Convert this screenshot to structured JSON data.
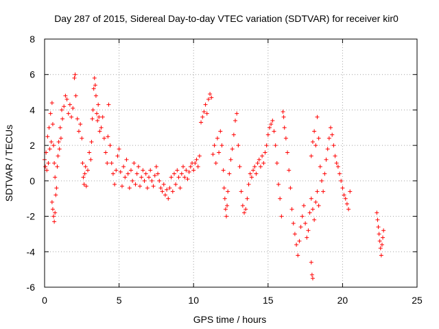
{
  "chart_data": {
    "type": "scatter",
    "title": "Day 287 of 2015, Sidereal Day-to-day VTEC variation (SDTVAR) for receiver kir0",
    "xlabel": "GPS time / hours",
    "ylabel": "SDTVAR / TECUs",
    "xlim": [
      0,
      25
    ],
    "ylim": [
      -6,
      8
    ],
    "xticks": [
      0,
      5,
      10,
      15,
      20,
      25
    ],
    "yticks": [
      -6,
      -4,
      -2,
      0,
      2,
      4,
      6,
      8
    ],
    "grid": true,
    "marker": "plus",
    "color": "#ff0000",
    "series": [
      {
        "name": "SDTVAR",
        "points": [
          [
            0.0,
            1.2
          ],
          [
            0.05,
            0.8
          ],
          [
            0.1,
            1.6
          ],
          [
            0.15,
            0.6
          ],
          [
            0.2,
            2.5
          ],
          [
            0.25,
            1.0
          ],
          [
            0.3,
            3.0
          ],
          [
            0.35,
            1.8
          ],
          [
            0.4,
            3.8
          ],
          [
            0.45,
            2.2
          ],
          [
            0.5,
            4.4
          ],
          [
            0.55,
            3.2
          ],
          [
            0.6,
            2.0
          ],
          [
            0.65,
            1.0
          ],
          [
            0.7,
            0.2
          ],
          [
            0.5,
            -1.2
          ],
          [
            0.55,
            -1.6
          ],
          [
            0.6,
            -2.0
          ],
          [
            0.65,
            -2.3
          ],
          [
            0.7,
            -1.8
          ],
          [
            0.75,
            -0.8
          ],
          [
            0.8,
            -0.4
          ],
          [
            0.85,
            0.8
          ],
          [
            0.9,
            1.4
          ],
          [
            0.95,
            2.2
          ],
          [
            1.0,
            1.8
          ],
          [
            1.05,
            3.0
          ],
          [
            1.1,
            2.4
          ],
          [
            1.15,
            4.0
          ],
          [
            1.2,
            3.5
          ],
          [
            1.3,
            4.2
          ],
          [
            1.4,
            4.8
          ],
          [
            1.5,
            4.6
          ],
          [
            1.6,
            3.8
          ],
          [
            1.7,
            4.3
          ],
          [
            1.8,
            3.6
          ],
          [
            1.9,
            4.1
          ],
          [
            2.0,
            5.8
          ],
          [
            2.05,
            6.0
          ],
          [
            2.1,
            4.8
          ],
          [
            2.2,
            3.5
          ],
          [
            2.3,
            2.8
          ],
          [
            2.4,
            3.2
          ],
          [
            2.5,
            2.4
          ],
          [
            2.55,
            1.0
          ],
          [
            2.6,
            0.2
          ],
          [
            2.65,
            -0.2
          ],
          [
            2.7,
            0.4
          ],
          [
            2.75,
            0.8
          ],
          [
            2.8,
            -0.3
          ],
          [
            2.9,
            0.6
          ],
          [
            3.0,
            1.6
          ],
          [
            3.1,
            1.2
          ],
          [
            3.15,
            2.2
          ],
          [
            3.2,
            3.5
          ],
          [
            3.25,
            4.0
          ],
          [
            3.3,
            5.2
          ],
          [
            3.35,
            5.8
          ],
          [
            3.4,
            5.4
          ],
          [
            3.45,
            4.8
          ],
          [
            3.5,
            3.8
          ],
          [
            3.55,
            3.4
          ],
          [
            3.6,
            4.3
          ],
          [
            3.65,
            3.6
          ],
          [
            3.7,
            2.8
          ],
          [
            3.8,
            3.0
          ],
          [
            3.9,
            3.6
          ],
          [
            4.0,
            2.4
          ],
          [
            4.1,
            1.6
          ],
          [
            4.2,
            1.0
          ],
          [
            4.25,
            2.5
          ],
          [
            4.3,
            4.3
          ],
          [
            4.4,
            2.0
          ],
          [
            4.5,
            1.0
          ],
          [
            4.6,
            0.4
          ],
          [
            4.7,
            -0.2
          ],
          [
            4.8,
            0.6
          ],
          [
            4.9,
            1.4
          ],
          [
            5.0,
            1.8
          ],
          [
            5.1,
            0.5
          ],
          [
            5.2,
            -0.3
          ],
          [
            5.3,
            0.8
          ],
          [
            5.4,
            0.2
          ],
          [
            5.5,
            1.2
          ],
          [
            5.6,
            0.4
          ],
          [
            5.7,
            -0.4
          ],
          [
            5.8,
            0.6
          ],
          [
            5.9,
            0.0
          ],
          [
            6.0,
            1.0
          ],
          [
            6.1,
            -0.2
          ],
          [
            6.2,
            0.4
          ],
          [
            6.3,
            0.8
          ],
          [
            6.4,
            -0.3
          ],
          [
            6.5,
            0.2
          ],
          [
            6.6,
            0.6
          ],
          [
            6.7,
            0.0
          ],
          [
            6.8,
            0.4
          ],
          [
            6.9,
            -0.4
          ],
          [
            7.0,
            0.2
          ],
          [
            7.1,
            0.6
          ],
          [
            7.2,
            0.0
          ],
          [
            7.3,
            -0.3
          ],
          [
            7.4,
            0.3
          ],
          [
            7.5,
            0.8
          ],
          [
            7.6,
            0.4
          ],
          [
            7.7,
            0.0
          ],
          [
            7.8,
            -0.4
          ],
          [
            7.9,
            -0.6
          ],
          [
            8.0,
            -0.2
          ],
          [
            8.1,
            -0.8
          ],
          [
            8.2,
            -0.5
          ],
          [
            8.3,
            -1.0
          ],
          [
            8.4,
            -0.4
          ],
          [
            8.5,
            0.2
          ],
          [
            8.6,
            -0.6
          ],
          [
            8.7,
            0.4
          ],
          [
            8.8,
            -0.2
          ],
          [
            8.9,
            0.6
          ],
          [
            9.0,
            0.2
          ],
          [
            9.1,
            -0.4
          ],
          [
            9.2,
            0.4
          ],
          [
            9.3,
            0.8
          ],
          [
            9.4,
            0.2
          ],
          [
            9.5,
            0.6
          ],
          [
            9.6,
            0.1
          ],
          [
            9.7,
            0.5
          ],
          [
            9.8,
            0.8
          ],
          [
            9.9,
            1.0
          ],
          [
            10.0,
            0.6
          ],
          [
            10.1,
            1.0
          ],
          [
            10.2,
            1.2
          ],
          [
            10.3,
            0.8
          ],
          [
            10.4,
            1.4
          ],
          [
            10.5,
            3.3
          ],
          [
            10.6,
            3.6
          ],
          [
            10.7,
            3.9
          ],
          [
            10.8,
            4.3
          ],
          [
            10.9,
            3.8
          ],
          [
            11.0,
            4.6
          ],
          [
            11.1,
            4.9
          ],
          [
            11.2,
            4.7
          ],
          [
            11.3,
            1.5
          ],
          [
            11.4,
            2.0
          ],
          [
            11.5,
            1.0
          ],
          [
            11.6,
            2.4
          ],
          [
            11.7,
            1.6
          ],
          [
            11.8,
            2.8
          ],
          [
            11.9,
            2.0
          ],
          [
            12.0,
            0.6
          ],
          [
            12.05,
            -0.4
          ],
          [
            12.1,
            -1.0
          ],
          [
            12.15,
            -1.6
          ],
          [
            12.2,
            -2.0
          ],
          [
            12.25,
            -1.4
          ],
          [
            12.3,
            -0.6
          ],
          [
            12.4,
            0.4
          ],
          [
            12.5,
            1.2
          ],
          [
            12.6,
            1.8
          ],
          [
            12.7,
            2.6
          ],
          [
            12.8,
            3.4
          ],
          [
            12.9,
            3.8
          ],
          [
            13.0,
            2.0
          ],
          [
            13.1,
            0.8
          ],
          [
            13.2,
            -0.6
          ],
          [
            13.3,
            -1.4
          ],
          [
            13.4,
            -1.8
          ],
          [
            13.5,
            -1.6
          ],
          [
            13.6,
            -1.0
          ],
          [
            13.7,
            -0.2
          ],
          [
            13.8,
            0.4
          ],
          [
            13.9,
            0.2
          ],
          [
            14.0,
            0.6
          ],
          [
            14.1,
            0.8
          ],
          [
            14.2,
            0.4
          ],
          [
            14.3,
            1.0
          ],
          [
            14.4,
            1.2
          ],
          [
            14.5,
            0.8
          ],
          [
            14.6,
            1.4
          ],
          [
            14.7,
            1.0
          ],
          [
            14.8,
            1.6
          ],
          [
            14.9,
            2.0
          ],
          [
            15.0,
            2.6
          ],
          [
            15.1,
            3.0
          ],
          [
            15.2,
            3.2
          ],
          [
            15.3,
            3.4
          ],
          [
            15.4,
            2.8
          ],
          [
            15.5,
            2.0
          ],
          [
            15.6,
            1.0
          ],
          [
            15.7,
            -0.2
          ],
          [
            15.8,
            -1.0
          ],
          [
            15.9,
            -2.0
          ],
          [
            16.0,
            3.9
          ],
          [
            16.05,
            3.6
          ],
          [
            16.1,
            3.0
          ],
          [
            16.2,
            2.4
          ],
          [
            16.3,
            1.6
          ],
          [
            16.4,
            0.6
          ],
          [
            16.5,
            -0.4
          ],
          [
            16.6,
            -1.6
          ],
          [
            16.7,
            -2.4
          ],
          [
            16.8,
            -3.0
          ],
          [
            16.9,
            -3.6
          ],
          [
            17.0,
            -4.2
          ],
          [
            17.1,
            -3.4
          ],
          [
            17.2,
            -2.6
          ],
          [
            17.3,
            -2.0
          ],
          [
            17.4,
            -1.4
          ],
          [
            17.5,
            -2.4
          ],
          [
            17.6,
            -3.2
          ],
          [
            17.7,
            -2.8
          ],
          [
            17.8,
            -1.8
          ],
          [
            17.9,
            -1.0
          ],
          [
            18.0,
            -1.6
          ],
          [
            18.1,
            -2.2
          ],
          [
            18.2,
            -1.2
          ],
          [
            18.3,
            -0.6
          ],
          [
            18.4,
            -1.4
          ],
          [
            17.9,
            -4.6
          ],
          [
            17.95,
            -5.3
          ],
          [
            18.0,
            -5.5
          ],
          [
            17.9,
            1.4
          ],
          [
            18.0,
            2.2
          ],
          [
            18.1,
            2.8
          ],
          [
            18.2,
            2.0
          ],
          [
            18.3,
            3.6
          ],
          [
            18.4,
            2.4
          ],
          [
            18.5,
            0.8
          ],
          [
            18.6,
            0.0
          ],
          [
            18.7,
            -0.6
          ],
          [
            18.8,
            0.4
          ],
          [
            18.9,
            1.2
          ],
          [
            19.0,
            1.8
          ],
          [
            19.1,
            2.4
          ],
          [
            19.2,
            3.0
          ],
          [
            19.3,
            2.6
          ],
          [
            19.4,
            2.0
          ],
          [
            19.5,
            1.4
          ],
          [
            19.6,
            1.0
          ],
          [
            19.7,
            0.8
          ],
          [
            19.8,
            0.4
          ],
          [
            19.9,
            0.0
          ],
          [
            20.0,
            -0.4
          ],
          [
            20.1,
            -0.8
          ],
          [
            20.2,
            -1.0
          ],
          [
            20.3,
            -1.3
          ],
          [
            20.4,
            -1.6
          ],
          [
            20.5,
            -0.6
          ],
          [
            22.3,
            -1.8
          ],
          [
            22.35,
            -2.2
          ],
          [
            22.4,
            -2.6
          ],
          [
            22.45,
            -3.0
          ],
          [
            22.5,
            -3.4
          ],
          [
            22.55,
            -3.8
          ],
          [
            22.6,
            -4.2
          ],
          [
            22.65,
            -3.6
          ],
          [
            22.7,
            -3.2
          ],
          [
            22.75,
            -2.8
          ]
        ]
      }
    ]
  }
}
